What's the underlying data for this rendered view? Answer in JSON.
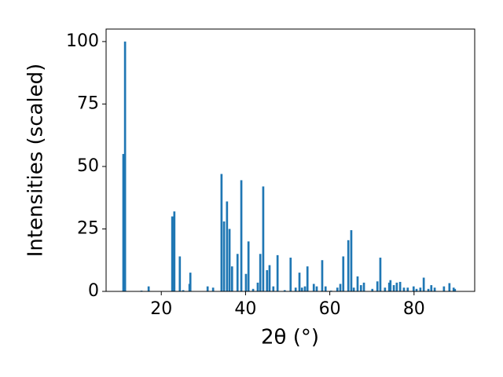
{
  "chart_data": {
    "type": "bar",
    "xlabel": "2θ (°)",
    "ylabel": "Intensities (scaled)",
    "color": "#1f77b4",
    "x": [
      11.0,
      11.4,
      15.3,
      17.0,
      22.6,
      23.1,
      24.4,
      25.2,
      26.7,
      26.9,
      31.0,
      32.3,
      34.3,
      34.9,
      35.6,
      36.2,
      36.8,
      38.1,
      39.0,
      40.1,
      40.7,
      41.8,
      42.9,
      43.5,
      44.2,
      45.1,
      45.7,
      46.6,
      47.6,
      49.3,
      50.7,
      51.9,
      52.8,
      53.4,
      54.1,
      54.7,
      56.2,
      56.9,
      58.2,
      59.0,
      60.3,
      61.8,
      62.5,
      63.2,
      64.4,
      65.1,
      65.7,
      66.6,
      67.4,
      68.1,
      70.1,
      71.3,
      72.0,
      73.1,
      74.1,
      74.4,
      75.2,
      75.9,
      76.7,
      77.6,
      78.5,
      79.9,
      80.6,
      81.5,
      82.3,
      83.4,
      84.1,
      84.9,
      87.1,
      88.4,
      89.4,
      89.7
    ],
    "values": [
      55,
      100,
      0.3,
      2,
      30,
      32,
      14,
      0.5,
      3,
      7.5,
      2,
      1.5,
      47,
      28,
      36,
      25,
      10,
      15,
      44.5,
      7,
      20,
      1,
      3.5,
      15,
      42,
      8.5,
      10.5,
      2,
      14.5,
      0.5,
      13.5,
      1.5,
      7.5,
      1.5,
      2,
      10,
      3,
      2,
      12.5,
      2,
      0.3,
      1.5,
      3,
      14,
      20.5,
      24.5,
      1.5,
      6,
      2.5,
      3.5,
      1,
      4,
      13.5,
      1.5,
      3.5,
      4.5,
      2.5,
      3.5,
      3.8,
      1.5,
      1.5,
      2,
      1,
      1.5,
      5.5,
      1,
      2.5,
      1.5,
      2,
      3.3,
      1.5,
      1
    ],
    "xlim": [
      6.9,
      94.4
    ],
    "ylim": [
      0,
      105
    ],
    "xticks": [
      20,
      40,
      60,
      80
    ],
    "yticks": [
      0,
      25,
      50,
      75,
      100
    ]
  }
}
